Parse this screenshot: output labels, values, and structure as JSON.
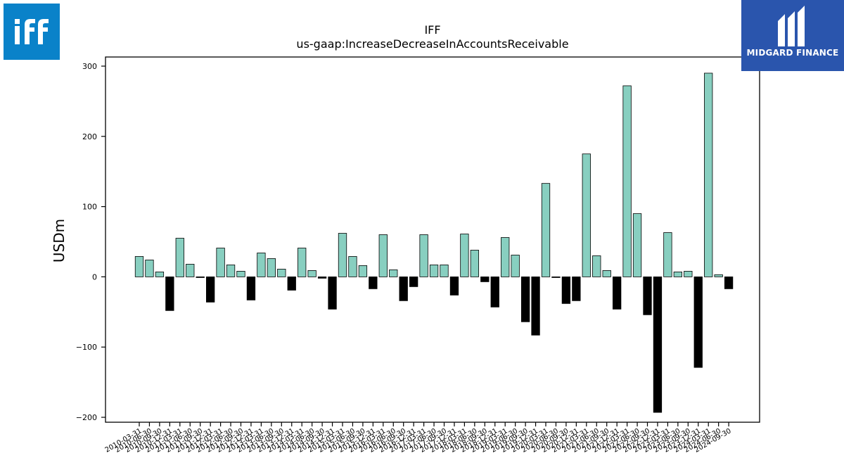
{
  "chart_data": {
    "type": "bar",
    "title": "IFF",
    "subtitle": "us-gaap:IncreaseDecreaseInAccountsReceivable",
    "ylabel": "USDm",
    "xlabel": "",
    "ylim": [
      -207,
      313
    ],
    "yticks": [
      -200,
      -100,
      0,
      100,
      200,
      300
    ],
    "grid": false,
    "categories": [
      "2010-03-31",
      "2010-06-30",
      "2010-09-30",
      "2010-12-31",
      "2011-03-31",
      "2011-06-30",
      "2011-09-30",
      "2011-12-31",
      "2012-03-31",
      "2012-06-30",
      "2012-09-30",
      "2012-12-31",
      "2013-03-31",
      "2013-06-30",
      "2013-09-30",
      "2013-12-31",
      "2014-03-31",
      "2014-06-30",
      "2014-09-30",
      "2014-12-31",
      "2015-03-31",
      "2015-06-30",
      "2015-09-30",
      "2015-12-31",
      "2016-03-31",
      "2016-06-30",
      "2016-09-30",
      "2016-12-31",
      "2017-03-31",
      "2017-06-30",
      "2017-09-30",
      "2017-12-31",
      "2018-03-31",
      "2018-06-30",
      "2018-09-30",
      "2018-12-31",
      "2019-03-31",
      "2019-06-30",
      "2019-09-30",
      "2019-12-31",
      "2020-03-31",
      "2020-06-30",
      "2020-09-30",
      "2020-12-31",
      "2021-03-31",
      "2021-06-30",
      "2021-09-30",
      "2021-12-31",
      "2022-03-31",
      "2022-06-30",
      "2022-09-30",
      "2022-12-31",
      "2023-03-31",
      "2023-06-30",
      "2023-09-30",
      "2023-12-31",
      "2024-03-31",
      "2024-06-30",
      "2024-09-30"
    ],
    "values": [
      29,
      24,
      7,
      -48,
      55,
      18,
      -1,
      -36,
      41,
      17,
      8,
      -33,
      34,
      26,
      11,
      -19,
      41,
      9,
      -2,
      -46,
      62,
      29,
      16,
      -17,
      60,
      10,
      -34,
      -14,
      60,
      17,
      17,
      -26,
      61,
      38,
      -7,
      -43,
      56,
      31,
      -64,
      -83,
      133,
      -1,
      -38,
      -34,
      175,
      30,
      9,
      -46,
      272,
      90,
      -54,
      -193,
      63,
      7,
      8,
      -129,
      290,
      3,
      -17
    ],
    "colors": {
      "positive": "#88cfc0",
      "negative": "#000000",
      "edge": "#000000"
    }
  },
  "logos": {
    "left": {
      "text": "iff",
      "color": "#0a82c9"
    },
    "right": {
      "text": "MIDGARD FINANCE",
      "color": "#2a55ad"
    }
  }
}
